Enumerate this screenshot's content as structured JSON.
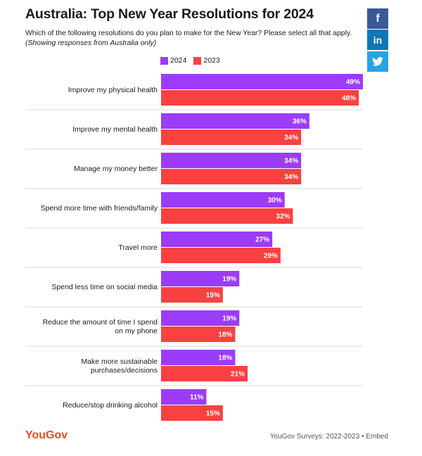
{
  "header": {
    "title": "Australia: Top New Year Resolutions for 2024",
    "subtitle": "Which of the following resolutions do you plan to make for the New Year? Please select all that apply.",
    "subtitle_note": "(Showing responses from Australia only)"
  },
  "share": {
    "facebook": "f",
    "linkedin": "in",
    "twitter_icon": "twitter-bird"
  },
  "colors": {
    "series_2024": "#9b3cfa",
    "series_2023": "#f94141",
    "brand": "#ef4a22",
    "facebook": "#3b5998",
    "linkedin": "#0f77b5",
    "twitter": "#28a3e3",
    "separator": "#d9d9d9"
  },
  "chart_data": {
    "type": "bar",
    "orientation": "horizontal",
    "categories": [
      "Improve my physical health",
      "Improve my mental health",
      "Manage my money better",
      "Spend more time with friends/family",
      "Travel more",
      "Spend less time on social media",
      "Reduce the amount of time I spend on my phone",
      "Make more sustainable purchases/decisions",
      "Reduce/stop drinking alcohol"
    ],
    "series": [
      {
        "name": "2024",
        "values": [
          49,
          36,
          34,
          30,
          27,
          19,
          19,
          18,
          11
        ],
        "labels": [
          "49%",
          "36%",
          "34%",
          "30%",
          "27%",
          "19%",
          "19%",
          "18%",
          "11%"
        ]
      },
      {
        "name": "2023",
        "values": [
          48,
          34,
          34,
          32,
          29,
          15,
          18,
          21,
          15
        ],
        "labels": [
          "48%",
          "34%",
          "34%",
          "32%",
          "29%",
          "15%",
          "18%",
          "21%",
          "15%"
        ]
      }
    ],
    "unit": "%",
    "xlim": [
      0,
      49
    ],
    "legend_position": "top"
  },
  "footer": {
    "logo": "YouGov",
    "source": "YouGov Surveys: 2022-2023",
    "separator": " • ",
    "embed": "Embed"
  }
}
